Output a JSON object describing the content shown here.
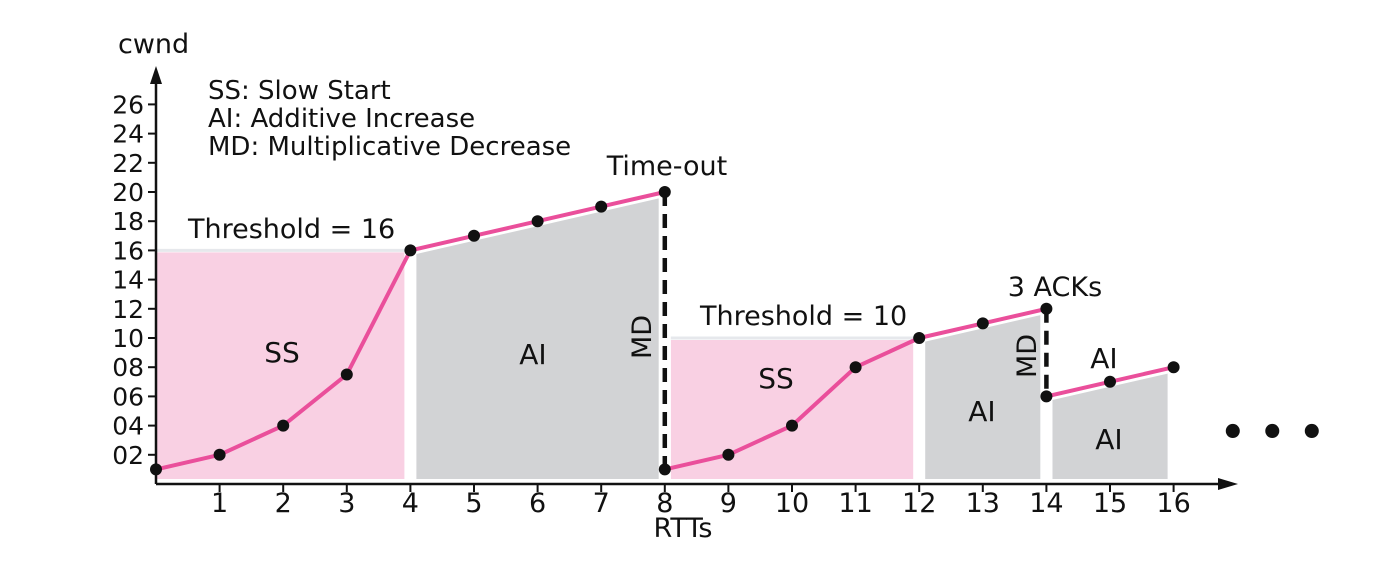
{
  "chart_data": {
    "type": "line",
    "title": "",
    "xlabel": "RTTs",
    "ylabel": "cwnd",
    "xlim": [
      0,
      16
    ],
    "ylim": [
      0,
      27
    ],
    "x_ticks": [
      1,
      2,
      3,
      4,
      5,
      6,
      7,
      8,
      9,
      10,
      11,
      12,
      13,
      14,
      15,
      16
    ],
    "y_ticks": [
      2,
      4,
      6,
      8,
      10,
      12,
      14,
      16,
      18,
      20,
      22,
      24,
      26
    ],
    "y_tick_labels": [
      "02",
      "04",
      "06",
      "08",
      "10",
      "12",
      "14",
      "16",
      "18",
      "20",
      "22",
      "24",
      "26"
    ],
    "series": [
      {
        "name": "cwnd",
        "color": "#ea4f9b",
        "x": [
          0,
          1,
          2,
          3,
          4,
          5,
          6,
          7,
          8
        ],
        "y": [
          1,
          2,
          4,
          7.5,
          16,
          17,
          18,
          19,
          20
        ]
      },
      {
        "name": "cwnd",
        "color": "#ea4f9b",
        "x": [
          8,
          9,
          10,
          11,
          12,
          13,
          14
        ],
        "y": [
          1,
          2,
          4,
          8,
          10,
          11,
          12
        ]
      },
      {
        "name": "cwnd",
        "color": "#ea4f9b",
        "x": [
          14,
          15,
          16
        ],
        "y": [
          6,
          7,
          8
        ]
      }
    ],
    "regions": [
      {
        "phase": "SS",
        "label": "SS",
        "fill": "#f9d0e3",
        "x_start": 0,
        "x_end": 4,
        "top": 16
      },
      {
        "phase": "AI",
        "label": "AI",
        "fill": "#d2d3d5",
        "x_start": 4,
        "x_end": 8
      },
      {
        "phase": "SS",
        "label": "SS",
        "fill": "#f9d0e3",
        "x_start": 8,
        "x_end": 12,
        "top": 10
      },
      {
        "phase": "AI",
        "label": "AI",
        "fill": "#d2d3d5",
        "x_start": 12,
        "x_end": 14
      },
      {
        "phase": "AI",
        "label": "AI",
        "fill": "#d2d3d5",
        "x_start": 14,
        "x_end": 16
      }
    ],
    "region_extra_label": "AI",
    "drops": [
      {
        "label": "MD",
        "x": 8,
        "from": 20,
        "to": 1
      },
      {
        "label": "MD",
        "x": 14,
        "from": 12,
        "to": 6
      }
    ],
    "annotations": {
      "threshold_1": "Threshold = 16",
      "threshold_2": "Threshold = 10",
      "timeout": "Time-out",
      "three_acks": "3 ACKs",
      "continuation": "• • •"
    },
    "legend": [
      "SS: Slow Start",
      "AI: Additive Increase",
      "MD: Multiplicative Decrease"
    ],
    "legend_position": "top-left",
    "grid": false,
    "colors": {
      "line": "#ea4f9b",
      "ss_fill": "#f9d0e3",
      "ai_fill": "#d2d3d5",
      "threshold_line": "#e6e8ec",
      "axis": "#111111",
      "point": "#111111"
    }
  }
}
